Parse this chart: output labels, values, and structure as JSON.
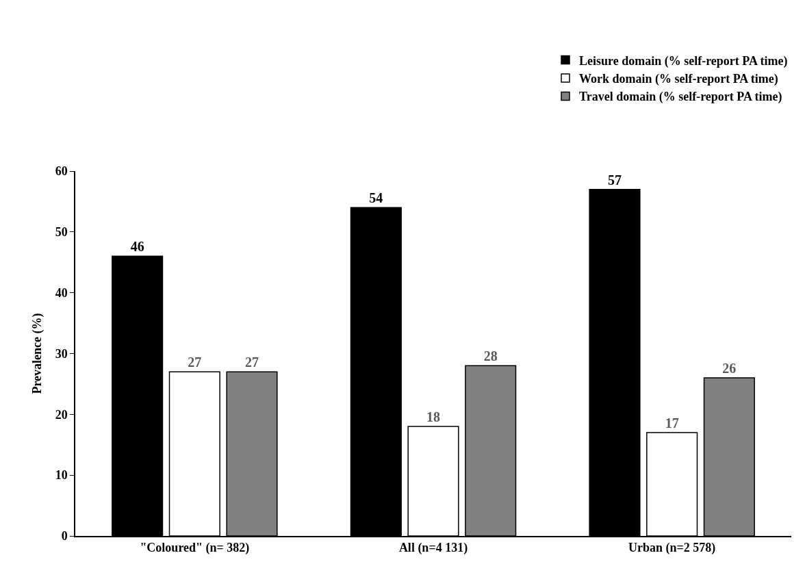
{
  "chart_data": {
    "type": "bar",
    "ylabel": "Prevalence (%)",
    "categories": [
      "\"Coloured\" (n= 382)",
      "All (n=4 131)",
      "Urban (n=2 578)"
    ],
    "series": [
      {
        "name": "Leisure domain (% self-report PA time)",
        "color": "#000000",
        "values": [
          46,
          54,
          57
        ]
      },
      {
        "name": "Work domain (% self-report PA time)",
        "color": "#ffffff",
        "values": [
          27,
          18,
          17
        ]
      },
      {
        "name": "Travel domain (% self-report PA time)",
        "color": "#808080",
        "values": [
          27,
          28,
          26
        ]
      }
    ],
    "ylim": [
      0,
      60
    ],
    "yticks": [
      0,
      10,
      20,
      30,
      40,
      50,
      60
    ],
    "legend": "top right",
    "data_labels": true
  }
}
